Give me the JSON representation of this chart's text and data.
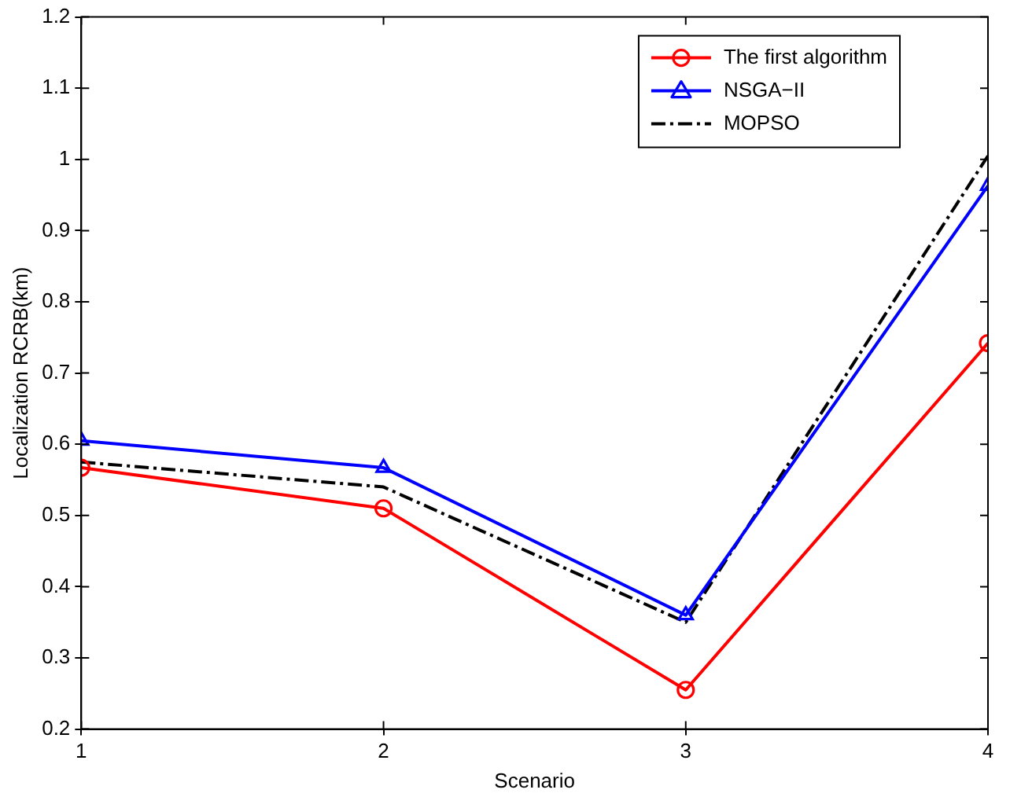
{
  "chart_data": {
    "type": "line",
    "xlabel": "Scenario",
    "ylabel": "Localization RCRB(km)",
    "x": [
      1,
      2,
      3,
      4
    ],
    "xlim": [
      1,
      4
    ],
    "xticks": [
      1,
      2,
      3,
      4
    ],
    "ylim": [
      0.2,
      1.2
    ],
    "yticks": [
      0.2,
      0.3,
      0.4,
      0.5,
      0.6,
      0.7,
      0.8,
      0.9,
      1,
      1.1,
      1.2
    ],
    "grid": false,
    "legend": "top right",
    "series": [
      {
        "name": "The first algorithm",
        "color": "#ff0000",
        "marker": "circle",
        "line_style": "solid",
        "values": [
          0.567,
          0.51,
          0.255,
          0.742
        ]
      },
      {
        "name": "NSGA−II",
        "color": "#0000ff",
        "marker": "triangle",
        "line_style": "solid",
        "values": [
          0.605,
          0.567,
          0.36,
          0.963
        ]
      },
      {
        "name": "MOPSO",
        "color": "#000000",
        "marker": "none",
        "line_style": "dashdot",
        "values": [
          0.575,
          0.54,
          0.35,
          1.005
        ]
      }
    ]
  }
}
